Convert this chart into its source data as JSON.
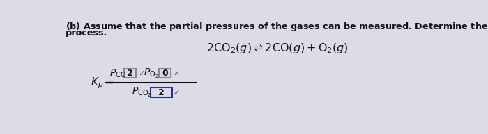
{
  "background_color": "#dcdce8",
  "text_color": "#111111",
  "box_fill": "#dcdce8",
  "box_edge_gray": "#888888",
  "box_edge_blue": "#1a3a8a",
  "title_line1": "(b) Assume that the partial pressures of the gases can be measured. Determine the $K_p$ for the following",
  "title_line2": "process.",
  "equation": "$2\\mathrm{CO_2}(g) \\rightleftharpoons 2\\mathrm{CO}(g) + \\mathrm{O_2}(g)$",
  "kp_text": "$K_p=$",
  "num_left_text": "$P_{\\mathrm{CO}}$",
  "num_left_box": "2",
  "num_right_text": "$P_{\\mathrm{O_2}}$",
  "num_right_box": "0",
  "den_text": "$P_{\\mathrm{CO_2}}$",
  "den_box": "2",
  "checkmark": "✓"
}
